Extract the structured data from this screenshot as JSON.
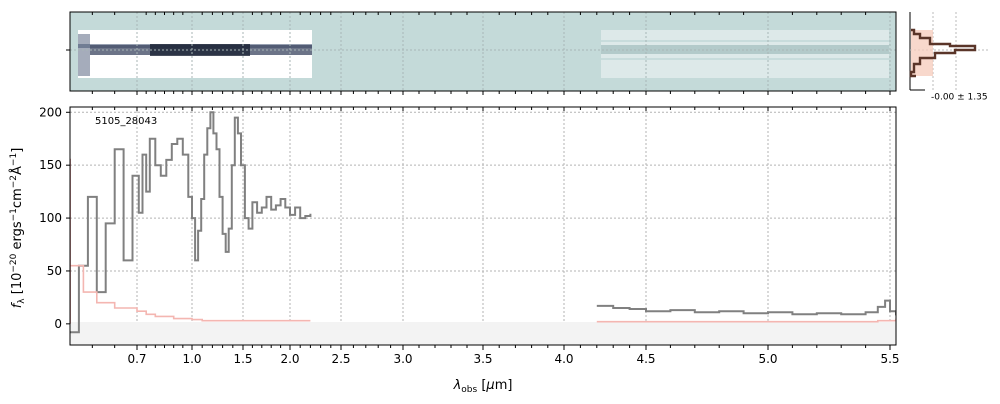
{
  "chart_data": {
    "type": "line",
    "object_label": "5105_28043",
    "xlabel": "$\\lambda_{\\rm obs}$ [$\\mu$m]",
    "ylabel": "$f_\\lambda$ [$10^{-20}$ ergs$^{-1}$cm$^{-2}$$\\rm\\AA^{-1}$]",
    "ylim": [
      -20,
      205
    ],
    "yticks": [
      0,
      50,
      100,
      150,
      200
    ],
    "xtick_labels": [
      "0.7",
      "1.0",
      "1.5",
      "2.0",
      "2.5",
      "3.0",
      "3.5",
      "4.0",
      "4.5",
      "5.0",
      "5.5"
    ],
    "grid": true,
    "series": [
      {
        "color": "#808080",
        "x": [
          0.55,
          0.57,
          0.59,
          0.61,
          0.63,
          0.65,
          0.67,
          0.69,
          0.71,
          0.73,
          0.75,
          0.77,
          0.8,
          0.83,
          0.86,
          0.89,
          0.92,
          0.95,
          0.98,
          1.0,
          1.03,
          1.06,
          1.09,
          1.12,
          1.15,
          1.18,
          1.21,
          1.24,
          1.27,
          1.3,
          1.33,
          1.36,
          1.39,
          1.42,
          1.45,
          1.48,
          1.52,
          1.56,
          1.6,
          1.65,
          1.7,
          1.75,
          1.8,
          1.85,
          1.9,
          1.95,
          2.0,
          2.05,
          2.1,
          2.15,
          2.2
        ],
        "y": [
          -8,
          55,
          120,
          30,
          95,
          165,
          60,
          140,
          105,
          160,
          125,
          175,
          150,
          140,
          155,
          170,
          175,
          160,
          120,
          100,
          60,
          88,
          118,
          160,
          185,
          200,
          180,
          165,
          120,
          85,
          68,
          90,
          150,
          195,
          180,
          150,
          100,
          90,
          115,
          105,
          110,
          120,
          108,
          112,
          118,
          110,
          103,
          110,
          100,
          102,
          104
        ]
      },
      {
        "color": "#808080",
        "x": [
          4.2,
          4.3,
          4.4,
          4.5,
          4.6,
          4.7,
          4.8,
          4.9,
          5.0,
          5.1,
          5.2,
          5.3,
          5.4,
          5.45,
          5.48,
          5.5,
          5.52
        ],
        "y": [
          17,
          15,
          14,
          12,
          13,
          11,
          12,
          10,
          11,
          9,
          10,
          9,
          11,
          16,
          22,
          12,
          8
        ]
      },
      {
        "color": "#f4b6b1",
        "x": [
          0.55,
          0.58,
          0.61,
          0.65,
          0.7,
          0.75,
          0.8,
          0.9,
          1.0,
          1.1,
          1.2,
          1.35,
          1.5,
          1.7,
          1.9,
          2.1,
          2.2
        ],
        "y": [
          55,
          30,
          20,
          15,
          12,
          9,
          7,
          5,
          4,
          3,
          3,
          3,
          3,
          3,
          3,
          3,
          3
        ]
      },
      {
        "color": "#f4b6b1",
        "x": [
          4.2,
          4.6,
          5.0,
          5.3,
          5.45,
          5.52
        ],
        "y": [
          2,
          2,
          2,
          2,
          3,
          5
        ]
      },
      {
        "color": "#b25c5c",
        "x": [
          0.55,
          0.55
        ],
        "y": [
          0,
          156
        ]
      }
    ],
    "histogram_label": "-0.00 ± 1.35"
  }
}
